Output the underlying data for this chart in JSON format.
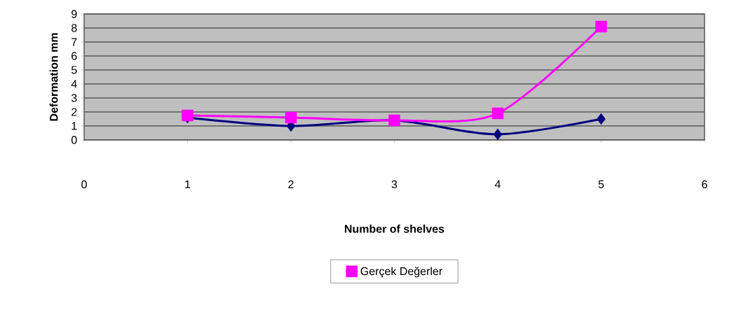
{
  "chart_data": {
    "type": "line",
    "xlabel": "Number of shelves",
    "ylabel": "Deformation mm",
    "x": [
      1,
      2,
      3,
      4,
      5
    ],
    "series": [
      {
        "color": "#000080",
        "marker": "diamond",
        "values": [
          1.6,
          1.0,
          1.4,
          0.4,
          1.5
        ]
      },
      {
        "name": "Gerçek Değerler",
        "color": "#ff00ff",
        "marker": "square",
        "values": [
          1.75,
          1.6,
          1.4,
          1.9,
          8.1
        ]
      }
    ],
    "xlim": [
      0,
      6
    ],
    "xticks": [
      0,
      1,
      2,
      3,
      4,
      5,
      6
    ],
    "ylim": [
      0,
      9
    ],
    "yticks": [
      0,
      1,
      2,
      3,
      4,
      5,
      6,
      7,
      8,
      9
    ],
    "grid": "y",
    "legend": "bottom",
    "line_style": "solid"
  }
}
